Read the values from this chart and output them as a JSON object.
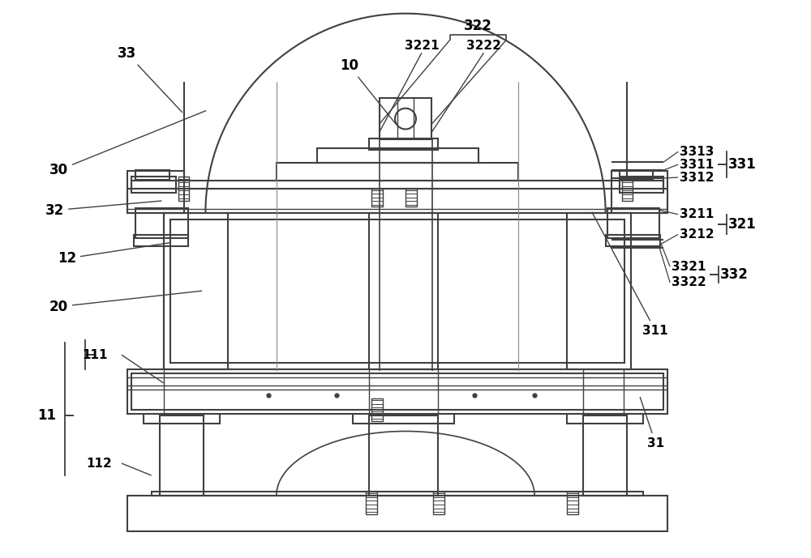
{
  "bg_color": "#ffffff",
  "line_color": "#404040",
  "line_width": 1.5,
  "fig_width": 10.0,
  "fig_height": 6.89
}
